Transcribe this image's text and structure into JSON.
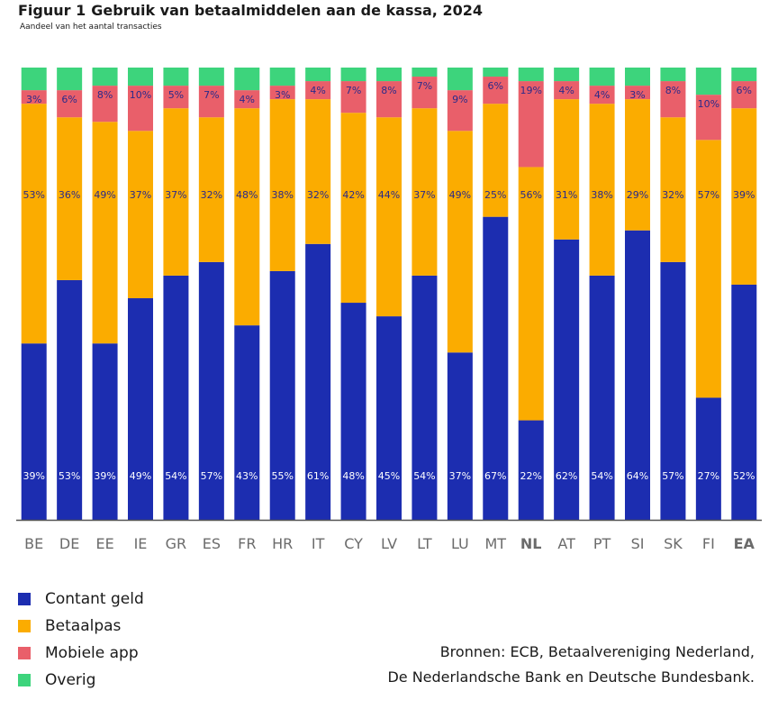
{
  "figure_label": "Figuur 1",
  "title": "Gebruik van betaalmiddelen aan de kassa, 2024",
  "subtitle": "Aandeel van het aantal transacties",
  "source_line1": "Bronnen: ECB, Betaalvereniging Nederland,",
  "source_line2": "De Nederlandsche Bank en Deutsche Bundesbank.",
  "chart_data": {
    "type": "bar",
    "stacked": true,
    "percent_stacked": true,
    "ylim": [
      0,
      100
    ],
    "grid": false,
    "legend_position": "bottom-left",
    "categories": [
      "BE",
      "DE",
      "EE",
      "IE",
      "GR",
      "ES",
      "FR",
      "HR",
      "IT",
      "CY",
      "LV",
      "LT",
      "LU",
      "MT",
      "NL",
      "AT",
      "PT",
      "SI",
      "SK",
      "FI",
      "EA"
    ],
    "highlighted_categories": [
      "NL",
      "EA"
    ],
    "series": [
      {
        "name": "Contant geld",
        "color": "#1c2db0",
        "label_color": "#ffffff",
        "values": [
          39,
          53,
          39,
          49,
          54,
          57,
          43,
          55,
          61,
          48,
          45,
          54,
          37,
          67,
          22,
          62,
          54,
          64,
          57,
          27,
          52
        ]
      },
      {
        "name": "Betaalpas",
        "color": "#fbac00",
        "label_color": "#2a2a8a",
        "values": [
          53,
          36,
          49,
          37,
          37,
          32,
          48,
          38,
          32,
          42,
          44,
          37,
          49,
          25,
          56,
          31,
          38,
          29,
          32,
          57,
          39
        ]
      },
      {
        "name": "Mobiele app",
        "color": "#e95f6a",
        "label_color": "#2a2a8a",
        "values": [
          3,
          6,
          8,
          10,
          5,
          7,
          4,
          3,
          4,
          7,
          8,
          7,
          9,
          6,
          19,
          4,
          4,
          3,
          8,
          10,
          6
        ]
      },
      {
        "name": "Overig",
        "color": "#3dd47c",
        "label_color": "#2a2a8a",
        "values": [
          5,
          5,
          4,
          4,
          4,
          4,
          5,
          4,
          3,
          3,
          3,
          2,
          5,
          2,
          3,
          3,
          4,
          4,
          3,
          6,
          3
        ]
      }
    ],
    "value_label_suffix": "%",
    "axis_color": "#555555",
    "tick_label_color": "#6b6b6b"
  }
}
